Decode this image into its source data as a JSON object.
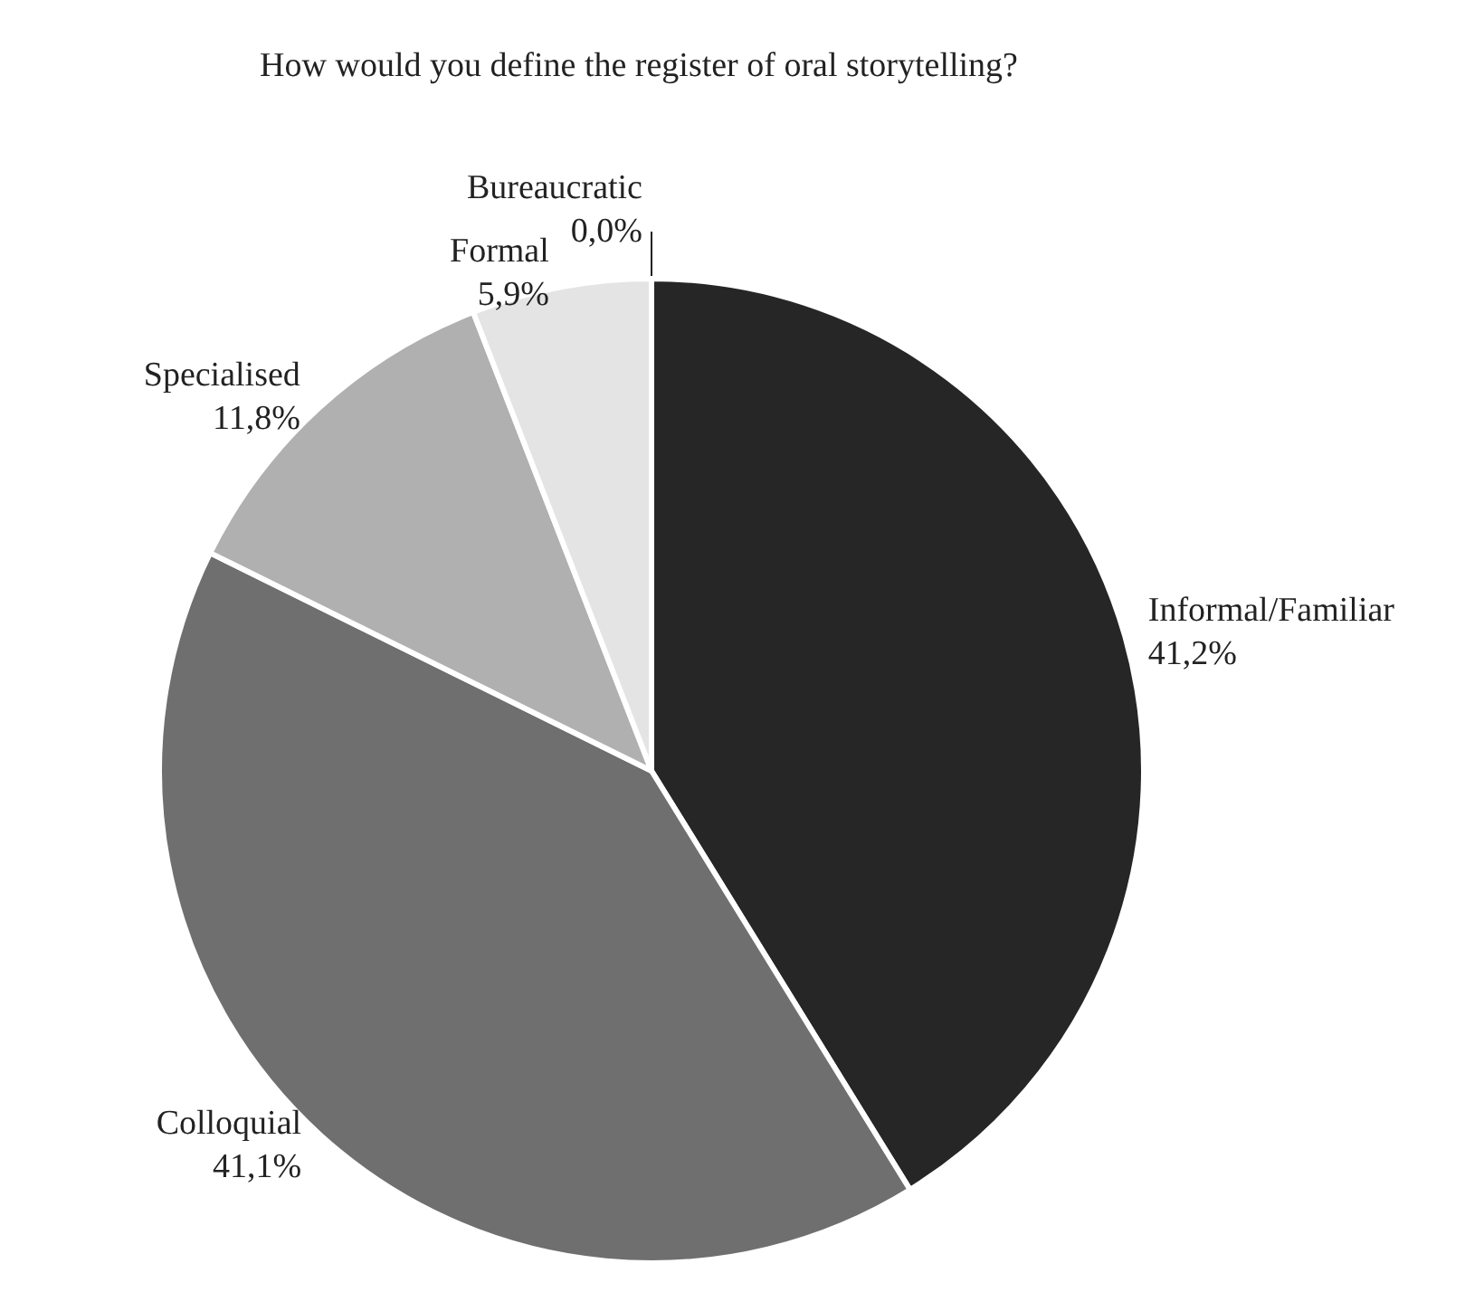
{
  "chart_data": {
    "type": "pie",
    "title": "How would you define the register of oral storytelling?",
    "categories": [
      "Informal/Familiar",
      "Colloquial",
      "Specialised",
      "Formal",
      "Bureaucratic"
    ],
    "values": [
      41.2,
      41.1,
      11.8,
      5.9,
      0.0
    ],
    "value_labels": [
      "41,2%",
      "41,1%",
      "11,8%",
      "5,9%",
      "0,0%"
    ],
    "colors": [
      "#262626",
      "#6f6f6f",
      "#b0b0b0",
      "#e4e4e4",
      "#f4f4f4"
    ],
    "legend": false
  }
}
